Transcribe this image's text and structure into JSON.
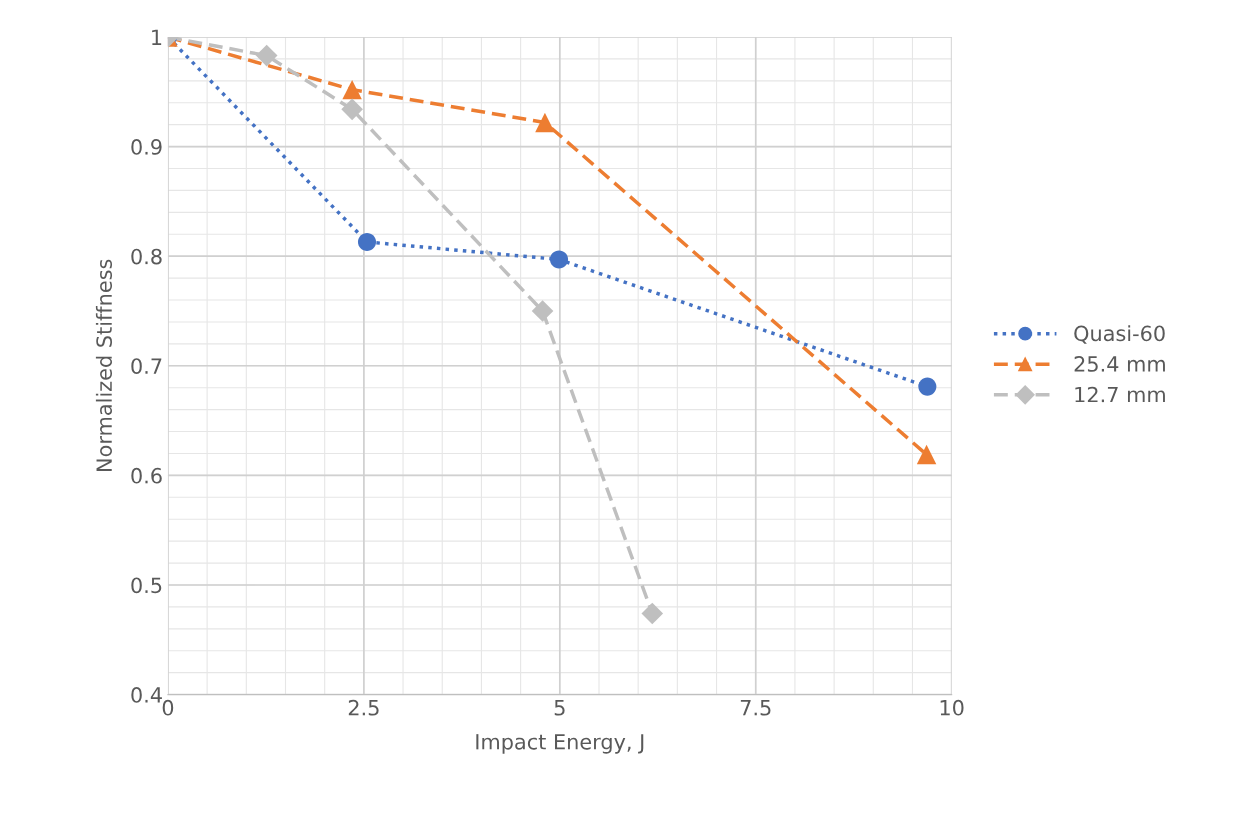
{
  "chart_data": {
    "type": "line",
    "xlabel": "Impact Energy, J",
    "ylabel": "Normalized Stiffness",
    "xlim": [
      0,
      10
    ],
    "xticks": [
      0,
      2.5,
      5,
      7.5,
      10
    ],
    "ylim": [
      0.4,
      1.0
    ],
    "yticks": [
      0.4,
      0.5,
      0.6,
      0.7,
      0.8,
      0.9,
      1
    ],
    "grid": true,
    "legend": "right",
    "series": [
      {
        "name": "Quasi-60",
        "color": "#4472c4",
        "marker": "circle",
        "line_style": "dotted",
        "x": [
          0,
          2.54,
          4.99,
          9.69
        ],
        "values": [
          1.0,
          0.813,
          0.797,
          0.681
        ]
      },
      {
        "name": "25.4 mm",
        "color": "#ed7d31",
        "marker": "triangle",
        "line_style": "dashed",
        "x": [
          0,
          2.35,
          4.81,
          9.68
        ],
        "values": [
          1.0,
          0.952,
          0.922,
          0.619
        ]
      },
      {
        "name": "12.7 mm",
        "color": "#bfbfbf",
        "marker": "diamond",
        "line_style": "dashed",
        "x": [
          0,
          1.26,
          2.35,
          4.78,
          6.18
        ],
        "values": [
          1.0,
          0.983,
          0.934,
          0.75,
          0.474
        ]
      }
    ]
  }
}
